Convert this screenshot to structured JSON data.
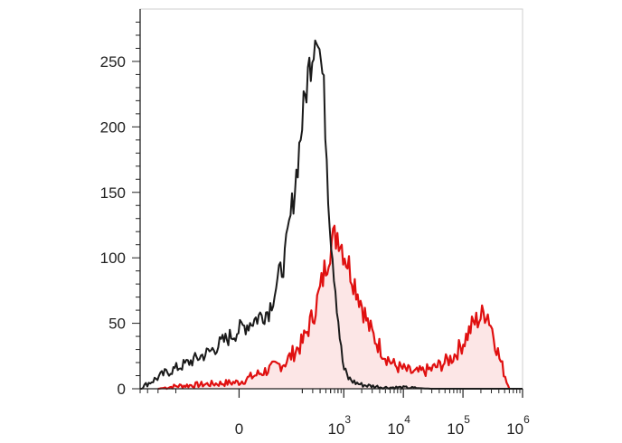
{
  "chart_data": {
    "type": "area",
    "title": "",
    "xlabel": "",
    "ylabel": "",
    "xscale": "biexponential",
    "xlim": [
      -800,
      1000000
    ],
    "ylim": [
      0,
      290
    ],
    "grid": false,
    "legend": "none",
    "y_ticks": [
      0,
      50,
      100,
      150,
      200,
      250
    ],
    "y_tick_labels": [
      "0",
      "50",
      "100",
      "150",
      "200",
      "250"
    ],
    "x_ticks": [
      0,
      1000,
      10000,
      100000,
      1000000
    ],
    "x_tick_labels": [
      {
        "base": "0",
        "exp": ""
      },
      {
        "base": "10",
        "exp": "3"
      },
      {
        "base": "10",
        "exp": "4"
      },
      {
        "base": "10",
        "exp": "5"
      },
      {
        "base": "10",
        "exp": "6"
      }
    ],
    "series": [
      {
        "color": "#1a1a1a",
        "fill": "none",
        "x": [
          -800,
          -700,
          -500,
          -300,
          -150,
          -50,
          0,
          50,
          100,
          150,
          200,
          250,
          300,
          350,
          400,
          450,
          500,
          550,
          600,
          700,
          800,
          900,
          1000,
          1200,
          1500,
          2000,
          3000,
          5000,
          10000,
          30000,
          100000,
          300000,
          1000000
        ],
        "y": [
          0,
          2,
          6,
          12,
          18,
          28,
          45,
          60,
          100,
          155,
          205,
          240,
          260,
          280,
          255,
          235,
          195,
          150,
          120,
          85,
          55,
          30,
          15,
          8,
          5,
          3,
          2,
          1,
          1,
          0,
          0,
          0,
          0
        ]
      },
      {
        "color": "#e01010",
        "fill": "#fce6e6",
        "x": [
          -400,
          -200,
          0,
          100,
          200,
          300,
          400,
          500,
          600,
          700,
          800,
          900,
          1000,
          1200,
          1500,
          2000,
          2500,
          3000,
          4000,
          5000,
          7000,
          10000,
          15000,
          20000,
          30000,
          50000,
          70000,
          100000,
          150000,
          200000,
          250000,
          300000,
          400000,
          600000
        ],
        "y": [
          0,
          2,
          5,
          20,
          35,
          55,
          75,
          95,
          110,
          115,
          120,
          112,
          105,
          95,
          82,
          65,
          50,
          42,
          32,
          25,
          18,
          15,
          12,
          13,
          15,
          20,
          25,
          35,
          50,
          55,
          60,
          48,
          25,
          0
        ]
      }
    ]
  }
}
